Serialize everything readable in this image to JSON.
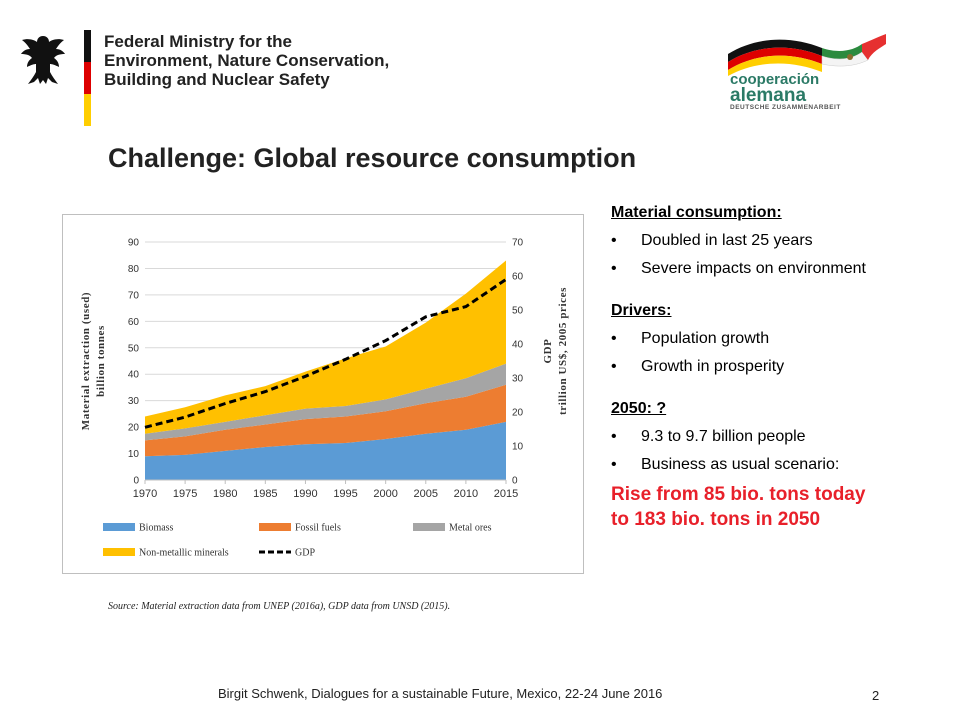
{
  "header": {
    "ministry_lines": [
      "Federal Ministry for the",
      "Environment, Nature Conservation,",
      "Building and Nuclear Safety"
    ],
    "coop_logo": {
      "line1": "cooperación",
      "line2": "alemana",
      "line3": "DEUTSCHE ZUSAMMENARBEIT"
    },
    "colors": {
      "black": "#111111",
      "red": "#dd0000",
      "gold": "#ffce00",
      "coop_green": "#2b7a66"
    }
  },
  "title": "Challenge: Global resource consumption",
  "chart_data": {
    "type": "area",
    "x": [
      1970,
      1975,
      1980,
      1985,
      1990,
      1995,
      2000,
      2005,
      2010,
      2015
    ],
    "left_axis": {
      "label_line1": "Material extraction (used)",
      "label_line2": "billion tonnes",
      "ylim": [
        0,
        90
      ],
      "ticks": [
        "0",
        "10",
        "20",
        "30",
        "40",
        "50",
        "60",
        "70",
        "80",
        "90"
      ]
    },
    "right_axis": {
      "label_line1": "GDP",
      "label_line2": "trillion US$, 2005 prices",
      "ylim": [
        0,
        70
      ],
      "ticks": [
        "0",
        "10",
        "20",
        "30",
        "40",
        "50",
        "60",
        "70"
      ]
    },
    "x_ticks": [
      "1970",
      "1975",
      "1980",
      "1985",
      "1990",
      "1995",
      "2000",
      "2005",
      "2010",
      "2015"
    ],
    "series": [
      {
        "name": "Biomass",
        "stacked": true,
        "color": "#5b9bd5",
        "values": [
          9,
          9.5,
          11,
          12.5,
          13.5,
          14,
          15.5,
          17.5,
          19,
          22
        ]
      },
      {
        "name": "Fossil fuels",
        "stacked": true,
        "color": "#ed7d31",
        "values": [
          6,
          7,
          8,
          8.5,
          9.5,
          10,
          10.5,
          11.5,
          12.5,
          14
        ]
      },
      {
        "name": "Metal ores",
        "stacked": true,
        "color": "#a5a5a5",
        "values": [
          2.5,
          3,
          3,
          3.5,
          4,
          4,
          4.5,
          5.5,
          7,
          8
        ]
      },
      {
        "name": "Non-metallic minerals",
        "stacked": true,
        "color": "#ffc000",
        "values": [
          6.5,
          8,
          10,
          11,
          14,
          18,
          20,
          25,
          32,
          39
        ]
      },
      {
        "name": "GDP",
        "axis": "right",
        "style": "dashed",
        "color": "#000000",
        "values": [
          15.5,
          18.5,
          22.5,
          26,
          30.5,
          35.5,
          41,
          48,
          51,
          59
        ]
      }
    ],
    "legend_position": "bottom"
  },
  "source": "Source: Material extraction data from UNEP (2016a), GDP data from UNSD (2015).",
  "right_panel": {
    "material": {
      "title": "Material consumption:",
      "bullets": [
        "Doubled in last 25 years",
        "Severe impacts on environment"
      ]
    },
    "drivers": {
      "title": "Drivers:",
      "bullets": [
        "Population growth",
        "Growth in prosperity"
      ]
    },
    "future": {
      "title": "2050: ?",
      "bullets": [
        "9.3 to 9.7 billion people",
        "Business as usual scenario:"
      ]
    },
    "highlight_lines": [
      "Rise from 85 bio. tons today",
      "to 183 bio. tons in 2050"
    ],
    "highlight_color": "#e8202a"
  },
  "footer": {
    "text": "Birgit Schwenk, Dialogues for a sustainable Future, Mexico, 22-24 June 2016",
    "page": "2"
  }
}
